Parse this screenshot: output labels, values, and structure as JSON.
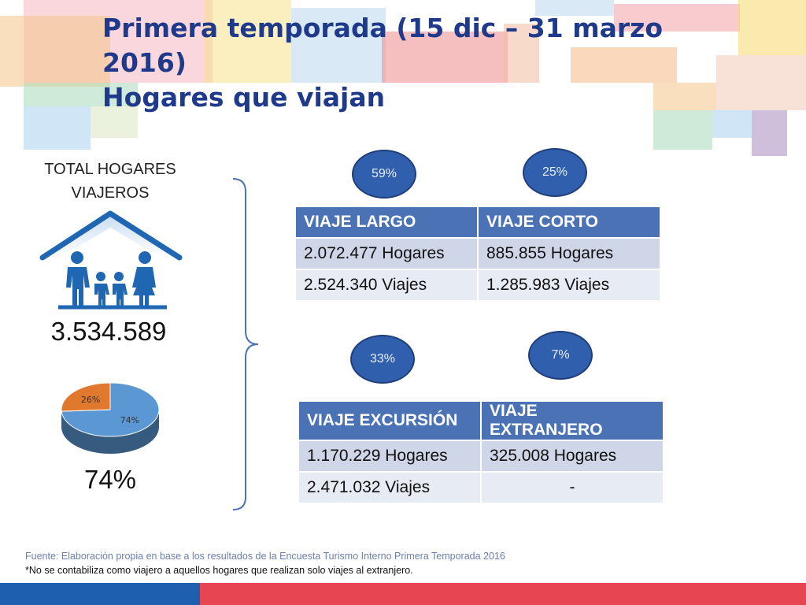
{
  "title_line1": "Primera temporada (15 dic – 31 marzo 2016)",
  "title_line2": "Hogares que viajan",
  "total_label_line1": "TOTAL HOGARES",
  "total_label_line2": "VIAJEROS",
  "total_value": "3.534.589",
  "total_pct": "74%",
  "pie": {
    "type": "pie",
    "slices": [
      {
        "label": "74%",
        "value": 74,
        "color": "#5b97d3"
      },
      {
        "label": "26%",
        "value": 26,
        "color": "#e0782e"
      }
    ]
  },
  "bubbles": {
    "largo": "59%",
    "corto": "25%",
    "excursion": "33%",
    "extranjero": "7%"
  },
  "table_top": {
    "headers": [
      "VIAJE LARGO",
      "VIAJE CORTO"
    ],
    "rows": [
      [
        "2.072.477 Hogares",
        "885.855 Hogares"
      ],
      [
        "2.524.340 Viajes",
        "1.285.983 Viajes"
      ]
    ]
  },
  "table_bottom": {
    "headers": [
      "VIAJE EXCURSIÓN",
      "VIAJE EXTRANJERO"
    ],
    "rows": [
      [
        "1.170.229 Hogares",
        "325.008 Hogares"
      ],
      [
        "2.471.032 Viajes",
        "-"
      ]
    ]
  },
  "footer": {
    "source": "Fuente: Elaboración propia en base a los resultados de la Encuesta Turismo Interno Primera Temporada 2016",
    "note": "*No se contabiliza como viajero a aquellos hogares que realizan solo viajes al extranjero."
  },
  "colors": {
    "title": "#1f3a8a",
    "table_header": "#4a72b5",
    "bubble": "#2f5fad",
    "bar_blue": "#1f5fb0",
    "bar_red": "#e74552"
  }
}
